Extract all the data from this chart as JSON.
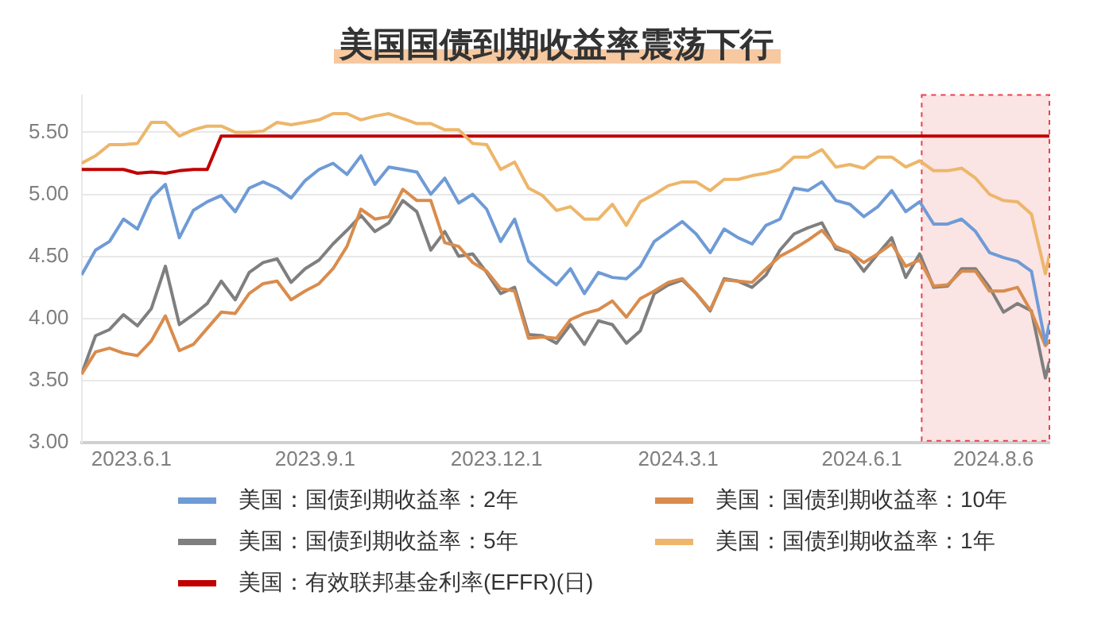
{
  "chart_data": {
    "type": "line",
    "title": "美国国债到期收益率震荡下行",
    "x": [
      "2023-05-07",
      "2023-05-14",
      "2023-05-21",
      "2023-05-28",
      "2023-06-04",
      "2023-06-11",
      "2023-06-18",
      "2023-06-25",
      "2023-07-02",
      "2023-07-09",
      "2023-07-16",
      "2023-07-23",
      "2023-07-30",
      "2023-08-06",
      "2023-08-13",
      "2023-08-20",
      "2023-08-27",
      "2023-09-03",
      "2023-09-10",
      "2023-09-17",
      "2023-09-24",
      "2023-10-01",
      "2023-10-08",
      "2023-10-15",
      "2023-10-22",
      "2023-10-29",
      "2023-11-05",
      "2023-11-12",
      "2023-11-19",
      "2023-11-26",
      "2023-12-03",
      "2023-12-10",
      "2023-12-17",
      "2023-12-24",
      "2023-12-31",
      "2024-01-07",
      "2024-01-14",
      "2024-01-21",
      "2024-01-28",
      "2024-02-04",
      "2024-02-11",
      "2024-02-18",
      "2024-02-25",
      "2024-03-03",
      "2024-03-10",
      "2024-03-17",
      "2024-03-24",
      "2024-03-31",
      "2024-04-07",
      "2024-04-14",
      "2024-04-21",
      "2024-04-28",
      "2024-05-05",
      "2024-05-12",
      "2024-05-19",
      "2024-05-26",
      "2024-06-02",
      "2024-06-09",
      "2024-06-16",
      "2024-06-23",
      "2024-06-30",
      "2024-07-07",
      "2024-07-14",
      "2024-07-21",
      "2024-07-28",
      "2024-08-04",
      "2024-08-11",
      "2024-08-18",
      "2024-08-25",
      "2024-09-01",
      "2024-09-03"
    ],
    "series": [
      {
        "name": "美国：国债到期收益率：2年",
        "color": "#6f9bd6",
        "values": [
          4.35,
          4.55,
          4.62,
          4.8,
          4.72,
          4.97,
          5.08,
          4.65,
          4.87,
          4.94,
          4.99,
          4.86,
          5.05,
          5.1,
          5.05,
          4.97,
          5.11,
          5.2,
          5.25,
          5.16,
          5.31,
          5.08,
          5.22,
          5.2,
          5.18,
          5.0,
          5.13,
          4.93,
          5.0,
          4.88,
          4.62,
          4.8,
          4.46,
          4.36,
          4.27,
          4.4,
          4.2,
          4.37,
          4.33,
          4.32,
          4.42,
          4.62,
          4.7,
          4.78,
          4.68,
          4.53,
          4.72,
          4.65,
          4.6,
          4.75,
          4.8,
          5.05,
          5.03,
          5.1,
          4.95,
          4.92,
          4.82,
          4.9,
          5.03,
          4.86,
          4.94,
          4.76,
          4.76,
          4.8,
          4.7,
          4.53,
          4.49,
          4.46,
          4.38,
          3.8,
          3.96
        ]
      },
      {
        "name": "美国：国债到期收益率：10年",
        "color": "#d98c4d",
        "values": [
          3.55,
          3.73,
          3.76,
          3.72,
          3.7,
          3.82,
          4.02,
          3.74,
          3.79,
          3.92,
          4.05,
          4.04,
          4.2,
          4.28,
          4.3,
          4.15,
          4.22,
          4.28,
          4.4,
          4.58,
          4.88,
          4.8,
          4.82,
          5.04,
          4.95,
          4.95,
          4.61,
          4.58,
          4.45,
          4.38,
          4.24,
          4.22,
          3.84,
          3.85,
          3.84,
          3.99,
          4.04,
          4.07,
          4.14,
          4.01,
          4.16,
          4.22,
          4.29,
          4.32,
          4.2,
          4.07,
          4.31,
          4.3,
          4.29,
          4.4,
          4.5,
          4.56,
          4.63,
          4.71,
          4.58,
          4.53,
          4.45,
          4.52,
          4.6,
          4.42,
          4.47,
          4.26,
          4.27,
          4.38,
          4.38,
          4.22,
          4.22,
          4.25,
          4.05,
          3.78,
          3.82
        ]
      },
      {
        "name": "美国：国债到期收益率：5年",
        "color": "#7f7f7f",
        "values": [
          3.55,
          3.86,
          3.91,
          4.03,
          3.94,
          4.08,
          4.42,
          3.95,
          4.03,
          4.12,
          4.3,
          4.15,
          4.37,
          4.45,
          4.48,
          4.29,
          4.4,
          4.47,
          4.6,
          4.71,
          4.83,
          4.7,
          4.77,
          4.95,
          4.86,
          4.55,
          4.7,
          4.5,
          4.52,
          4.37,
          4.2,
          4.25,
          3.87,
          3.86,
          3.8,
          3.95,
          3.79,
          3.98,
          3.95,
          3.8,
          3.9,
          4.2,
          4.27,
          4.31,
          4.2,
          4.06,
          4.32,
          4.3,
          4.25,
          4.35,
          4.55,
          4.68,
          4.73,
          4.77,
          4.56,
          4.53,
          4.38,
          4.52,
          4.65,
          4.33,
          4.52,
          4.25,
          4.26,
          4.4,
          4.4,
          4.25,
          4.05,
          4.12,
          4.06,
          3.52,
          3.65
        ]
      },
      {
        "name": "美国：国债到期收益率：1年",
        "color": "#edb66a",
        "values": [
          5.25,
          5.31,
          5.4,
          5.4,
          5.41,
          5.58,
          5.58,
          5.47,
          5.52,
          5.55,
          5.55,
          5.5,
          5.5,
          5.51,
          5.58,
          5.56,
          5.58,
          5.6,
          5.65,
          5.65,
          5.6,
          5.63,
          5.65,
          5.61,
          5.57,
          5.57,
          5.52,
          5.52,
          5.41,
          5.4,
          5.2,
          5.26,
          5.05,
          4.99,
          4.87,
          4.9,
          4.8,
          4.8,
          4.92,
          4.75,
          4.94,
          5.0,
          5.07,
          5.1,
          5.1,
          5.03,
          5.12,
          5.12,
          5.15,
          5.17,
          5.2,
          5.3,
          5.3,
          5.36,
          5.22,
          5.24,
          5.21,
          5.3,
          5.3,
          5.22,
          5.27,
          5.19,
          5.19,
          5.21,
          5.13,
          5.0,
          4.95,
          4.94,
          4.84,
          4.36,
          4.51
        ]
      },
      {
        "name": "美国：有效联邦基金利率(EFFR)(日)",
        "color": "#c00000",
        "values": [
          5.2,
          5.2,
          5.2,
          5.2,
          5.17,
          5.18,
          5.17,
          5.19,
          5.2,
          5.2,
          5.47,
          5.47,
          5.47,
          5.47,
          5.47,
          5.47,
          5.47,
          5.47,
          5.47,
          5.47,
          5.47,
          5.47,
          5.47,
          5.47,
          5.47,
          5.47,
          5.47,
          5.47,
          5.47,
          5.47,
          5.47,
          5.47,
          5.47,
          5.47,
          5.47,
          5.47,
          5.47,
          5.47,
          5.47,
          5.47,
          5.47,
          5.47,
          5.47,
          5.47,
          5.47,
          5.47,
          5.47,
          5.47,
          5.47,
          5.47,
          5.47,
          5.47,
          5.47,
          5.47,
          5.47,
          5.47,
          5.47,
          5.47,
          5.47,
          5.47,
          5.47,
          5.47,
          5.47,
          5.47,
          5.47,
          5.47,
          5.47,
          5.47,
          5.47,
          5.47,
          5.47
        ]
      }
    ],
    "xlim": [
      "2023-05-07",
      "2024-09-03"
    ],
    "xticks": [
      {
        "value": "2023-06-01",
        "label": "2023.6.1"
      },
      {
        "value": "2023-09-01",
        "label": "2023.9.1"
      },
      {
        "value": "2023-12-01",
        "label": "2023.12.1"
      },
      {
        "value": "2024-03-01",
        "label": "2024.3.1"
      },
      {
        "value": "2024-06-01",
        "label": "2024.6.1"
      },
      {
        "value": "2024-08-06",
        "label": "2024.8.6"
      }
    ],
    "ylim": [
      3,
      5.8
    ],
    "yticks": [
      {
        "value": 3,
        "label": "3.00"
      },
      {
        "value": 3.5,
        "label": "3.50"
      },
      {
        "value": 4,
        "label": "4.00"
      },
      {
        "value": 4.5,
        "label": "4.50"
      },
      {
        "value": 5,
        "label": "5.00"
      },
      {
        "value": 5.5,
        "label": "5.50"
      }
    ],
    "bands": [
      {
        "axis": "x",
        "from": "2024-07-01",
        "to": "2024-09-03",
        "color": "#fbe4e4"
      }
    ],
    "grid": "y",
    "legend": "bottom",
    "marker": "none",
    "line_style": "solid"
  }
}
